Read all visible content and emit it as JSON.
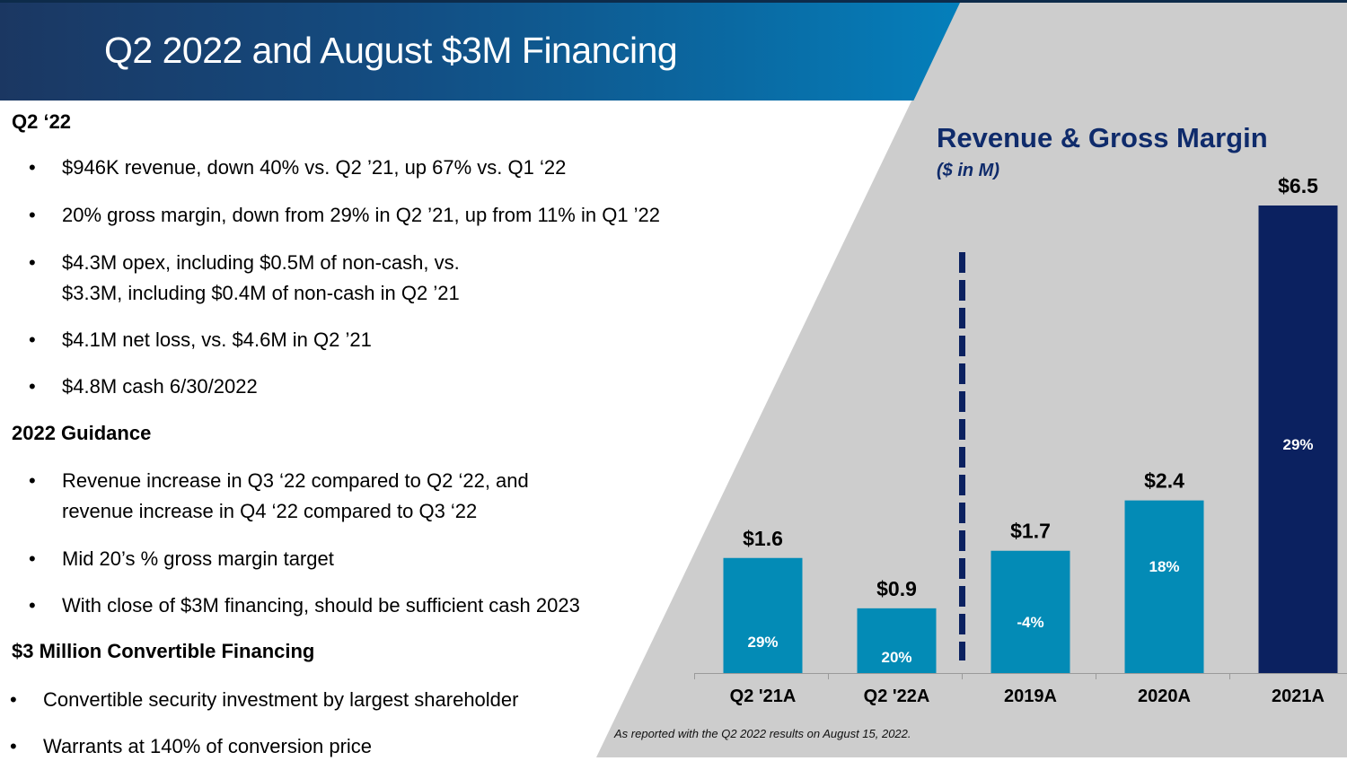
{
  "header": {
    "title": "Q2 2022 and August $3M Financing"
  },
  "sections": [
    {
      "heading": "Q2 ‘22",
      "bullets": [
        [
          "$946K revenue, down 40% vs. Q2 ’21, up 67% vs. Q1 ‘22"
        ],
        [
          "20% gross margin, down from 29% in Q2 ’21, up from 11% in Q1 ’22"
        ],
        [
          "$4.3M opex, including $0.5M of non-cash, vs.",
          "$3.3M, including $0.4M of non-cash in Q2 ’21"
        ],
        [
          "$4.1M net loss, vs. $4.6M in Q2 ’21"
        ],
        [
          "$4.8M cash 6/30/2022"
        ]
      ]
    },
    {
      "heading": "2022 Guidance",
      "bullets": [
        [
          "Revenue increase in Q3 ‘22 compared to Q2 ‘22, and",
          "revenue increase in Q4 ‘22 compared to Q3 ‘22"
        ],
        [
          "Mid 20’s % gross margin target"
        ],
        [
          "With close of $3M financing, should be sufficient cash 2023"
        ]
      ]
    },
    {
      "heading": "$3 Million Convertible Financing",
      "bullets": [
        [
          "Convertible security investment by largest shareholder"
        ],
        [
          "Warrants at 140% of conversion price"
        ]
      ]
    }
  ],
  "bullet_char": "•",
  "colors": {
    "bar_light": "#038bb6",
    "bar_dark": "#0b2160",
    "title_blue": "#0f2b6b",
    "panel_gray": "#cdcdcd",
    "divider": "#0b2160"
  },
  "footnote": "As reported with the Q2 2022 results on August 15, 2022.",
  "chart_data": {
    "type": "bar",
    "title": "Revenue & Gross Margin",
    "subtitle": "($ in M)",
    "xlabel": "",
    "ylabel": "",
    "ylim": [
      0,
      6.5
    ],
    "categories": [
      "Q2 '21A",
      "Q2 '22A",
      "2019A",
      "2020A",
      "2021A"
    ],
    "values": [
      1.6,
      0.9,
      1.7,
      2.4,
      6.5
    ],
    "value_labels": [
      "$1.6",
      "$0.9",
      "$1.7",
      "$2.4",
      "$6.5"
    ],
    "gross_margin": [
      29,
      20,
      -4,
      18,
      29
    ],
    "gross_margin_labels": [
      "29%",
      "20%",
      "-4%",
      "18%",
      "29%"
    ],
    "highlighted": [
      false,
      false,
      false,
      false,
      true
    ],
    "divider_after_index": 1,
    "grid": false,
    "legend": "none"
  }
}
